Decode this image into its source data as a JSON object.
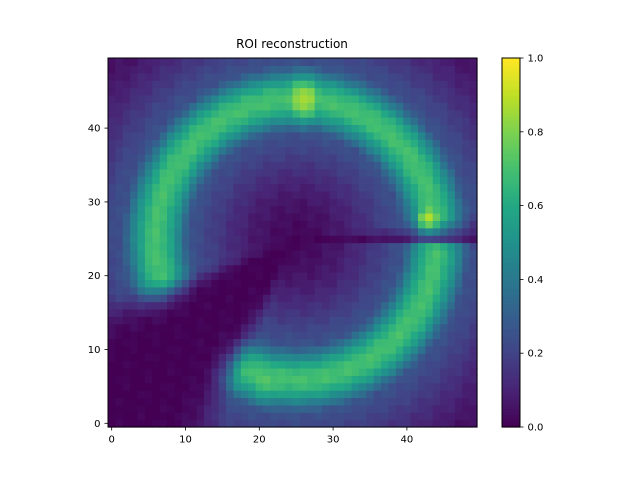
{
  "chart_data": {
    "type": "heatmap",
    "title": "ROI reconstruction",
    "xlabel": "",
    "ylabel": "",
    "grid_size": [
      50,
      50
    ],
    "xlim": [
      -0.5,
      49.5
    ],
    "ylim": [
      -0.5,
      49.5
    ],
    "origin": "lower",
    "colormap": "viridis",
    "clim": [
      0.0,
      1.0
    ],
    "x_ticks": [
      0,
      10,
      20,
      30,
      40
    ],
    "y_ticks": [
      0,
      10,
      20,
      30,
      40
    ],
    "colorbar_ticks": [
      0.0,
      0.2,
      0.4,
      0.6,
      0.8,
      1.0
    ],
    "colorbar_tick_labels": [
      "0.0",
      "0.2",
      "0.4",
      "0.6",
      "0.8",
      "1.0"
    ],
    "grid": false,
    "background_value": 0.0,
    "ring": {
      "center": [
        25,
        25
      ],
      "radius": 19,
      "thickness": 3.2,
      "base_value": 0.7
    },
    "arc_segments_deg": [
      {
        "start": 10,
        "end": 195
      },
      {
        "start": 250,
        "end": 355
      }
    ],
    "blobs": [
      {
        "x": 26,
        "y": 44,
        "peak": 0.88,
        "spread": 3.0
      },
      {
        "x": 43,
        "y": 28,
        "peak": 0.9,
        "spread": 1.8
      },
      {
        "x": 6,
        "y": 22,
        "peak": 0.72,
        "spread": 2.5
      },
      {
        "x": 21,
        "y": 6,
        "peak": 0.74,
        "spread": 3.0
      }
    ],
    "halo_value": 0.3
  }
}
